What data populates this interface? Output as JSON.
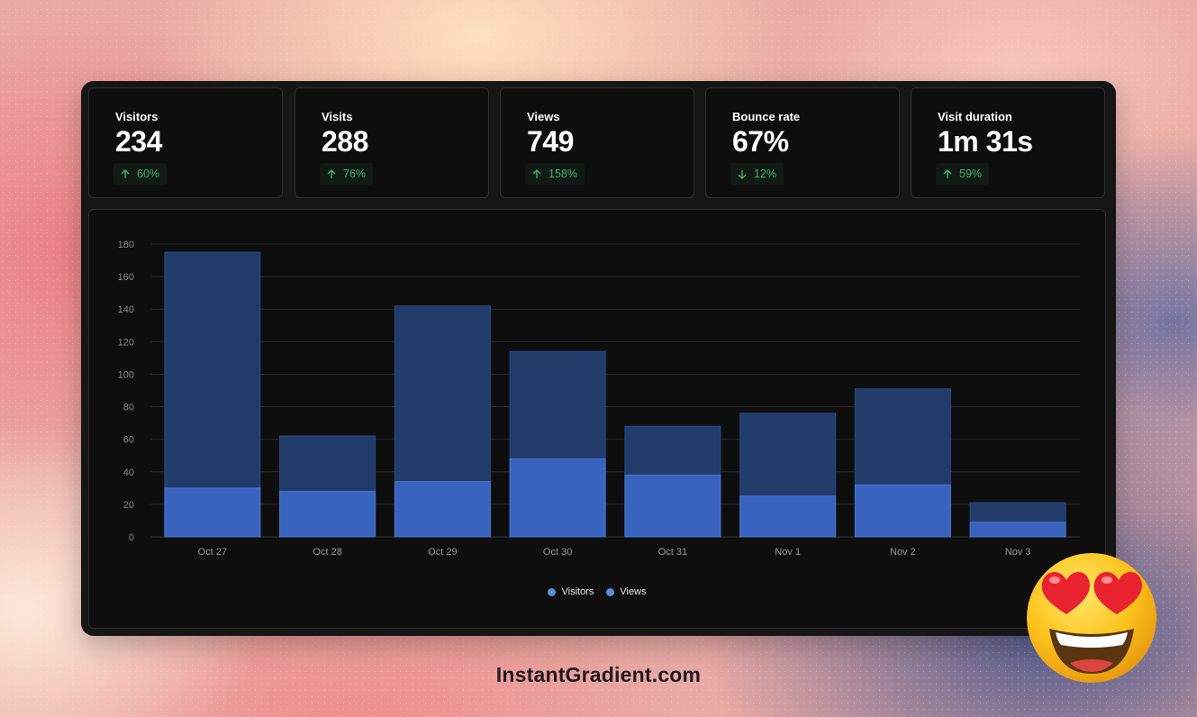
{
  "metrics": [
    {
      "label": "Visitors",
      "value": "234",
      "delta": "60%",
      "direction": "up"
    },
    {
      "label": "Visits",
      "value": "288",
      "delta": "76%",
      "direction": "up"
    },
    {
      "label": "Views",
      "value": "749",
      "delta": "158%",
      "direction": "up"
    },
    {
      "label": "Bounce rate",
      "value": "67%",
      "delta": "12%",
      "direction": "down"
    },
    {
      "label": "Visit duration",
      "value": "1m 31s",
      "delta": "59%",
      "direction": "up"
    }
  ],
  "chart_data": {
    "type": "bar",
    "stacked": false,
    "overlay": true,
    "categories": [
      "Oct 27",
      "Oct 28",
      "Oct 29",
      "Oct 30",
      "Oct 31",
      "Nov 1",
      "Nov 2",
      "Nov 3"
    ],
    "series": [
      {
        "name": "Visitors",
        "values": [
          30,
          28,
          34,
          48,
          38,
          25,
          32,
          9
        ],
        "color": "#3863bf"
      },
      {
        "name": "Views",
        "values": [
          175,
          62,
          142,
          114,
          68,
          76,
          91,
          21
        ],
        "color": "#213c6a"
      }
    ],
    "ylim": [
      0,
      180
    ],
    "yticks": [
      0,
      20,
      40,
      60,
      80,
      100,
      120,
      140,
      160,
      180
    ],
    "grid": true,
    "legend": "bottom-center"
  },
  "legend_items": [
    "Visitors",
    "Views"
  ],
  "colors": {
    "accent_green": "#3fb56b",
    "legend_dot": "#5b8fd9"
  },
  "icons": {
    "up": "arrow-up-icon",
    "down": "arrow-down-icon",
    "emoji": "heart-eyes-emoji-icon"
  },
  "brand": "InstantGradient.com"
}
